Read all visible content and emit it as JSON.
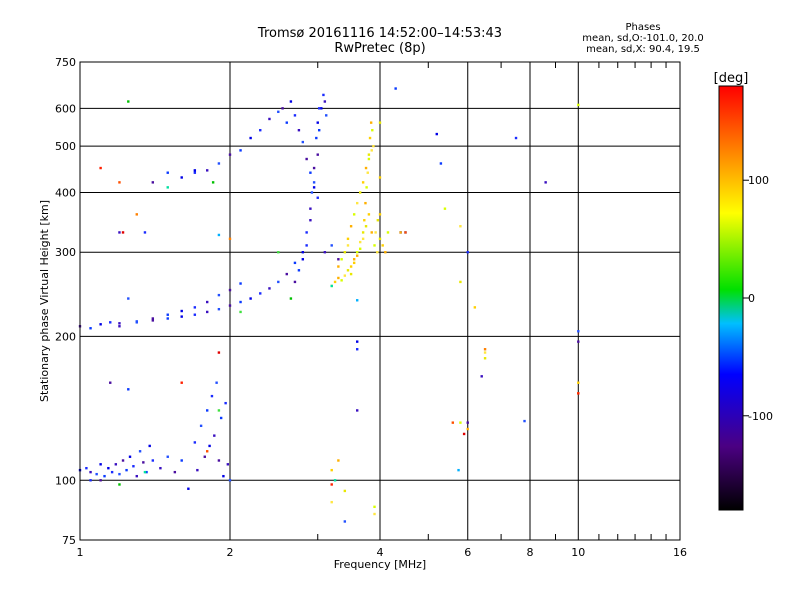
{
  "chart_data": {
    "type": "scatter",
    "title": "Tromsø 20161116 14:52:00–14:53:43",
    "subtitle": "RwPretec (8p)",
    "stats": {
      "header": "Phases",
      "line1": "mean, sd,O:-101.0, 20.0",
      "line2": "mean, sd,X:  90.4, 19.5"
    },
    "xlabel": "Frequency [MHz]",
    "ylabel": "Stationary phase Virtual Height [km]",
    "x_scale": "log",
    "y_scale": "log",
    "xlim": [
      1,
      16
    ],
    "ylim": [
      75,
      750
    ],
    "x_ticks": [
      1,
      2,
      4,
      6,
      8,
      10,
      16
    ],
    "x_tick_labels": [
      "1",
      "2",
      "4",
      "6",
      "8",
      "10",
      "16"
    ],
    "x_gridlines": [
      2,
      4,
      6,
      8,
      10
    ],
    "y_ticks": [
      75,
      100,
      200,
      300,
      400,
      500,
      600,
      750
    ],
    "y_tick_labels": [
      "75",
      "100",
      "200",
      "300",
      "400",
      "500",
      "600",
      "750"
    ],
    "y_gridlines": [
      100,
      200,
      300,
      400,
      500,
      600
    ],
    "grid": true,
    "colorbar": {
      "title": "[deg]",
      "range": [
        -180,
        180
      ],
      "ticks": [
        -100,
        0,
        100
      ],
      "tick_labels": [
        "-100",
        "0",
        "100"
      ]
    },
    "series": [
      {
        "name": "",
        "color": "blue-violet",
        "description_points_deg": -100,
        "points": [
          [
            1.0,
            105
          ],
          [
            1.03,
            106
          ],
          [
            1.05,
            104
          ],
          [
            1.08,
            103
          ],
          [
            1.1,
            100
          ],
          [
            1.12,
            102
          ],
          [
            1.14,
            106
          ],
          [
            1.16,
            104
          ],
          [
            1.18,
            108
          ],
          [
            1.2,
            103
          ],
          [
            1.22,
            110
          ],
          [
            1.24,
            105
          ],
          [
            1.26,
            112
          ],
          [
            1.28,
            107
          ],
          [
            1.3,
            102
          ],
          [
            1.32,
            115
          ],
          [
            1.34,
            109
          ],
          [
            1.36,
            104
          ],
          [
            1.38,
            118
          ],
          [
            1.4,
            110
          ],
          [
            1.45,
            106
          ],
          [
            1.5,
            112
          ],
          [
            1.55,
            104
          ],
          [
            1.6,
            110
          ],
          [
            1.65,
            96
          ],
          [
            1.7,
            120
          ],
          [
            1.72,
            105
          ],
          [
            1.75,
            130
          ],
          [
            1.78,
            112
          ],
          [
            1.8,
            140
          ],
          [
            1.82,
            118
          ],
          [
            1.84,
            150
          ],
          [
            1.86,
            124
          ],
          [
            1.88,
            160
          ],
          [
            1.9,
            110
          ],
          [
            1.92,
            135
          ],
          [
            1.94,
            102
          ],
          [
            1.96,
            145
          ],
          [
            1.98,
            108
          ],
          [
            2.0,
            100
          ],
          [
            1.0,
            210
          ],
          [
            1.05,
            208
          ],
          [
            1.1,
            212
          ],
          [
            1.15,
            214
          ],
          [
            1.2,
            213
          ],
          [
            1.3,
            215
          ],
          [
            1.4,
            216
          ],
          [
            1.5,
            218
          ],
          [
            1.6,
            220
          ],
          [
            1.7,
            222
          ],
          [
            1.8,
            225
          ],
          [
            1.9,
            228
          ],
          [
            2.0,
            232
          ],
          [
            2.1,
            236
          ],
          [
            2.2,
            240
          ],
          [
            2.3,
            246
          ],
          [
            2.4,
            252
          ],
          [
            2.5,
            260
          ],
          [
            2.6,
            270
          ],
          [
            2.7,
            285
          ],
          [
            2.8,
            300
          ],
          [
            2.85,
            330
          ],
          [
            2.9,
            370
          ],
          [
            2.95,
            420
          ],
          [
            3.0,
            480
          ],
          [
            3.02,
            540
          ],
          [
            3.05,
            600
          ],
          [
            3.08,
            640
          ],
          [
            3.1,
            620
          ],
          [
            3.12,
            580
          ],
          [
            2.7,
            260
          ],
          [
            2.75,
            275
          ],
          [
            2.8,
            290
          ],
          [
            2.85,
            310
          ],
          [
            2.9,
            350
          ],
          [
            2.92,
            400
          ],
          [
            2.95,
            450
          ],
          [
            2.98,
            520
          ],
          [
            3.0,
            560
          ],
          [
            3.02,
            600
          ],
          [
            1.2,
            210
          ],
          [
            1.3,
            214
          ],
          [
            1.4,
            218
          ],
          [
            1.5,
            222
          ],
          [
            1.6,
            226
          ],
          [
            1.7,
            230
          ],
          [
            1.8,
            236
          ],
          [
            1.9,
            244
          ],
          [
            2.0,
            250
          ],
          [
            2.1,
            258
          ],
          [
            1.6,
            430
          ],
          [
            1.7,
            440
          ],
          [
            1.8,
            445
          ],
          [
            1.9,
            460
          ],
          [
            2.0,
            480
          ],
          [
            2.1,
            490
          ],
          [
            2.2,
            520
          ],
          [
            2.3,
            540
          ],
          [
            2.4,
            570
          ],
          [
            2.5,
            590
          ],
          [
            2.55,
            600
          ],
          [
            2.6,
            560
          ],
          [
            2.65,
            620
          ],
          [
            2.7,
            580
          ],
          [
            2.75,
            540
          ],
          [
            2.8,
            510
          ],
          [
            2.85,
            470
          ],
          [
            2.9,
            440
          ],
          [
            2.95,
            410
          ],
          [
            3.0,
            390
          ],
          [
            3.1,
            300
          ],
          [
            3.2,
            310
          ],
          [
            3.3,
            290
          ],
          [
            4.3,
            660
          ],
          [
            5.2,
            530
          ],
          [
            7.5,
            520
          ],
          [
            8.6,
            420
          ],
          [
            10.0,
            205
          ],
          [
            10.0,
            195
          ],
          [
            5.3,
            460
          ],
          [
            4.4,
            330
          ],
          [
            6.0,
            300
          ],
          [
            6.4,
            165
          ],
          [
            7.8,
            133
          ],
          [
            6.0,
            132
          ],
          [
            4.5,
            330
          ],
          [
            3.6,
            195
          ],
          [
            3.6,
            188
          ],
          [
            3.6,
            140
          ],
          [
            3.4,
            82
          ],
          [
            1.4,
            420
          ],
          [
            1.5,
            440
          ],
          [
            1.7,
            445
          ],
          [
            1.35,
            330
          ],
          [
            1.2,
            330
          ],
          [
            1.25,
            240
          ],
          [
            1.15,
            160
          ],
          [
            1.25,
            155
          ],
          [
            1.1,
            108
          ],
          [
            1.05,
            100
          ]
        ]
      },
      {
        "name": "",
        "color": "yellow-orange",
        "description_points_deg": 90,
        "points": [
          [
            3.2,
            255
          ],
          [
            3.25,
            260
          ],
          [
            3.3,
            265
          ],
          [
            3.35,
            262
          ],
          [
            3.4,
            268
          ],
          [
            3.45,
            275
          ],
          [
            3.5,
            280
          ],
          [
            3.55,
            290
          ],
          [
            3.6,
            300
          ],
          [
            3.65,
            315
          ],
          [
            3.7,
            330
          ],
          [
            3.72,
            350
          ],
          [
            3.74,
            380
          ],
          [
            3.76,
            410
          ],
          [
            3.78,
            440
          ],
          [
            3.8,
            480
          ],
          [
            3.82,
            520
          ],
          [
            3.84,
            560
          ],
          [
            3.86,
            540
          ],
          [
            3.88,
            500
          ],
          [
            3.5,
            270
          ],
          [
            3.55,
            285
          ],
          [
            3.6,
            295
          ],
          [
            3.65,
            305
          ],
          [
            3.7,
            320
          ],
          [
            3.75,
            340
          ],
          [
            3.8,
            360
          ],
          [
            3.85,
            330
          ],
          [
            3.9,
            310
          ],
          [
            3.95,
            300
          ],
          [
            3.4,
            300
          ],
          [
            3.45,
            320
          ],
          [
            3.5,
            340
          ],
          [
            3.55,
            360
          ],
          [
            3.6,
            380
          ],
          [
            3.65,
            400
          ],
          [
            3.7,
            420
          ],
          [
            3.75,
            450
          ],
          [
            3.8,
            470
          ],
          [
            3.85,
            490
          ],
          [
            4.0,
            320
          ],
          [
            4.05,
            310
          ],
          [
            4.1,
            300
          ],
          [
            4.15,
            330
          ],
          [
            3.92,
            330
          ],
          [
            3.96,
            350
          ],
          [
            4.0,
            360
          ],
          [
            3.3,
            280
          ],
          [
            3.35,
            290
          ],
          [
            3.45,
            310
          ],
          [
            4.0,
            560
          ],
          [
            4.0,
            430
          ],
          [
            4.4,
            330
          ],
          [
            5.4,
            370
          ],
          [
            5.8,
            340
          ],
          [
            5.8,
            260
          ],
          [
            6.2,
            230
          ],
          [
            6.0,
            128
          ],
          [
            5.8,
            132
          ],
          [
            6.5,
            185
          ],
          [
            6.5,
            180
          ],
          [
            10.0,
            160
          ],
          [
            10.0,
            152
          ],
          [
            10.0,
            610
          ],
          [
            3.2,
            90
          ],
          [
            3.4,
            95
          ],
          [
            3.2,
            105
          ],
          [
            3.3,
            110
          ],
          [
            3.9,
            88
          ],
          [
            3.9,
            85
          ]
        ]
      },
      {
        "name": "",
        "color": "green-cyan",
        "description_points_deg": 0,
        "points": [
          [
            1.25,
            620
          ],
          [
            1.5,
            410
          ],
          [
            1.9,
            326
          ],
          [
            2.5,
            300
          ],
          [
            2.65,
            240
          ],
          [
            3.2,
            255
          ],
          [
            3.6,
            238
          ],
          [
            2.1,
            225
          ],
          [
            1.2,
            98
          ],
          [
            1.35,
            104
          ],
          [
            5.75,
            105
          ],
          [
            1.9,
            140
          ],
          [
            1.85,
            420
          ],
          [
            3.25,
            100
          ]
        ]
      },
      {
        "name": "",
        "color": "red",
        "description_points_deg": 170,
        "points": [
          [
            1.1,
            450
          ],
          [
            1.2,
            420
          ],
          [
            1.22,
            330
          ],
          [
            1.3,
            360
          ],
          [
            1.6,
            160
          ],
          [
            1.8,
            115
          ],
          [
            1.9,
            185
          ],
          [
            2.0,
            320
          ],
          [
            3.2,
            98
          ],
          [
            5.6,
            132
          ],
          [
            5.9,
            125
          ],
          [
            6.5,
            188
          ],
          [
            10.0,
            152
          ],
          [
            4.5,
            330
          ]
        ]
      }
    ]
  }
}
